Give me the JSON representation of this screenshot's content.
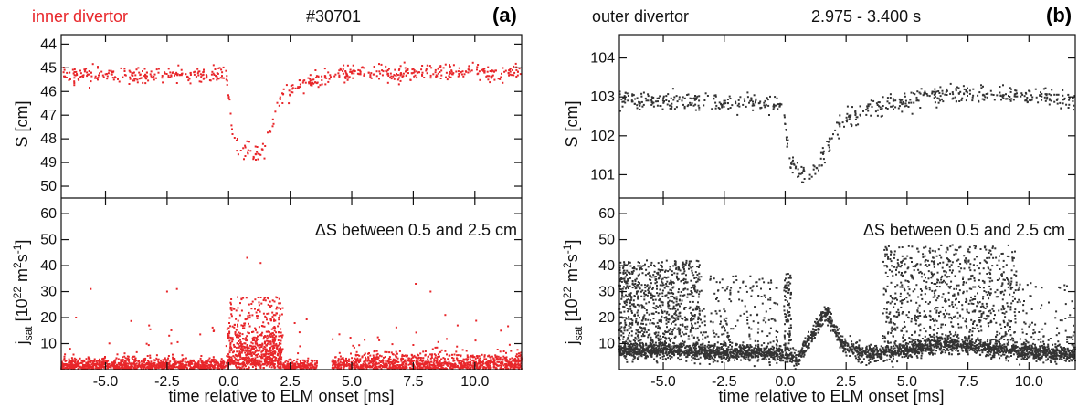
{
  "figure": {
    "colors": {
      "inner": "#e8262a",
      "outer": "#333333",
      "axis": "#111111"
    },
    "annotation": "ΔS between 0.5 and 2.5 cm",
    "x_ticks": [
      "-5.0",
      "-2.5",
      "0.0",
      "2.5",
      "5.0",
      "7.5",
      "10.0"
    ],
    "xlabel": "time relative to ELM onset [ms]"
  },
  "chart_data": [
    {
      "panel": "a",
      "type": "scatter",
      "title": "inner divertor",
      "title_color": "#e8262a",
      "header_center": "#30701",
      "letter": "(a)",
      "color": "#e8262a",
      "xlim": [
        -6.8,
        11.9
      ],
      "top": {
        "ylabel": "S [cm]",
        "ylim": [
          50.5,
          43.6
        ],
        "reversed": true,
        "yticks": [
          44,
          45,
          46,
          47,
          48,
          49,
          50
        ],
        "ytick_labels": [
          "44",
          "45",
          "46",
          "47",
          "48",
          "49",
          "50"
        ],
        "profile": [
          [
            -6.8,
            45.3
          ],
          [
            -0.1,
            45.3
          ],
          [
            0.15,
            47.6
          ],
          [
            0.4,
            48.4
          ],
          [
            1.0,
            48.7
          ],
          [
            1.5,
            48.4
          ],
          [
            1.8,
            47.2
          ],
          [
            2.1,
            46.3
          ],
          [
            2.7,
            45.8
          ],
          [
            4.0,
            45.4
          ],
          [
            5.5,
            45.2
          ],
          [
            12.0,
            45.2
          ]
        ],
        "spread": 0.18
      },
      "bottom": {
        "ylabel": "jsat [10^22 m^2s^-1]",
        "ylim": [
          0,
          66
        ],
        "yticks": [
          10,
          20,
          30,
          40,
          50,
          60
        ],
        "ytick_labels": [
          "10",
          "20",
          "30",
          "40",
          "50",
          "60"
        ],
        "bursts": [
          [
            -6.8,
            3.5,
            2.2
          ],
          [
            -0.1,
            2.2,
            9.0
          ],
          [
            2.2,
            3.6,
            1.8
          ],
          [
            5.0,
            12.0,
            3.2
          ]
        ],
        "gap": [
          3.6,
          4.2
        ]
      }
    },
    {
      "panel": "b",
      "type": "scatter",
      "title": "outer divertor",
      "title_color": "#111111",
      "header_center": "2.975 - 3.400 s",
      "letter": "(b)",
      "color": "#333333",
      "xlim": [
        -6.8,
        11.9
      ],
      "top": {
        "ylabel": "S [cm]",
        "ylim": [
          100.4,
          104.6
        ],
        "reversed": false,
        "yticks": [
          101,
          102,
          103,
          104
        ],
        "ytick_labels": [
          "101",
          "102",
          "103",
          "104"
        ],
        "profile": [
          [
            -6.8,
            102.9
          ],
          [
            -0.1,
            102.85
          ],
          [
            0.2,
            101.3
          ],
          [
            1.0,
            100.95
          ],
          [
            1.5,
            101.4
          ],
          [
            2.1,
            102.2
          ],
          [
            3.0,
            102.6
          ],
          [
            5.0,
            102.95
          ],
          [
            7.0,
            103.1
          ],
          [
            12.0,
            102.9
          ]
        ],
        "spread": 0.12
      },
      "bottom": {
        "ylabel": "jsat [10^22 m^2s^-1]",
        "ylim": [
          0,
          66
        ],
        "yticks": [
          10,
          20,
          30,
          40,
          50,
          60
        ],
        "ytick_labels": [
          "10",
          "20",
          "30",
          "40",
          "50",
          "60"
        ],
        "baseline": [
          [
            -6.8,
            7.5
          ],
          [
            -0.2,
            6.0
          ],
          [
            0.5,
            4.5
          ],
          [
            1.7,
            22.0
          ],
          [
            2.3,
            10.0
          ],
          [
            3.0,
            6.5
          ],
          [
            4.0,
            6.0
          ],
          [
            6.5,
            10.0
          ],
          [
            9.0,
            7.5
          ],
          [
            12.0,
            6.0
          ]
        ],
        "bursts": [
          [
            -6.8,
            -3.5,
            42.0
          ],
          [
            4.0,
            9.5,
            48.0
          ]
        ]
      }
    }
  ]
}
